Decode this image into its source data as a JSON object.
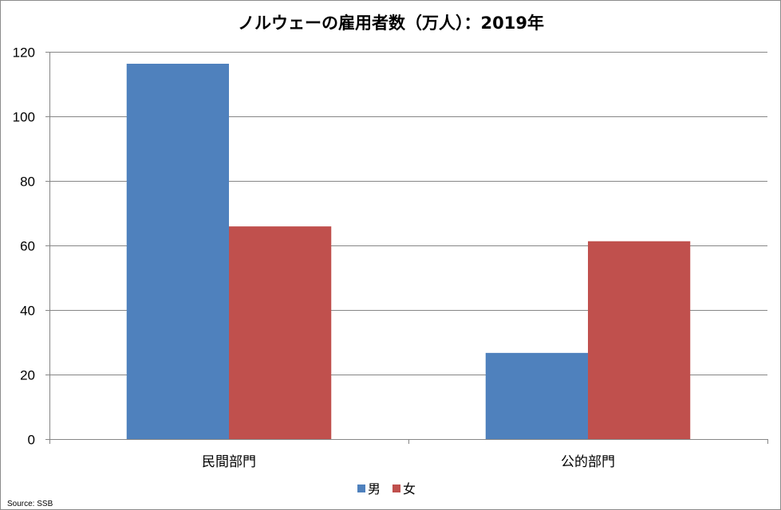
{
  "chart_data": {
    "type": "bar",
    "title": "ノルウェーの雇用者数（万人）：2019年",
    "xlabel": "",
    "ylabel": "",
    "categories": [
      "民間部門",
      "公的部門"
    ],
    "series": [
      {
        "name": "男",
        "values": [
          116.3,
          26.7
        ],
        "color": "#4f81bd"
      },
      {
        "name": "女",
        "values": [
          65.9,
          61.3
        ],
        "color": "#c0504d"
      }
    ],
    "ylim": [
      0,
      120
    ],
    "yticks": [
      0,
      20,
      40,
      60,
      80,
      100,
      120
    ],
    "grid": true,
    "legend": "bottom",
    "axis_color": "#868686",
    "grid_color": "#868686"
  },
  "source": "Source: SSB"
}
